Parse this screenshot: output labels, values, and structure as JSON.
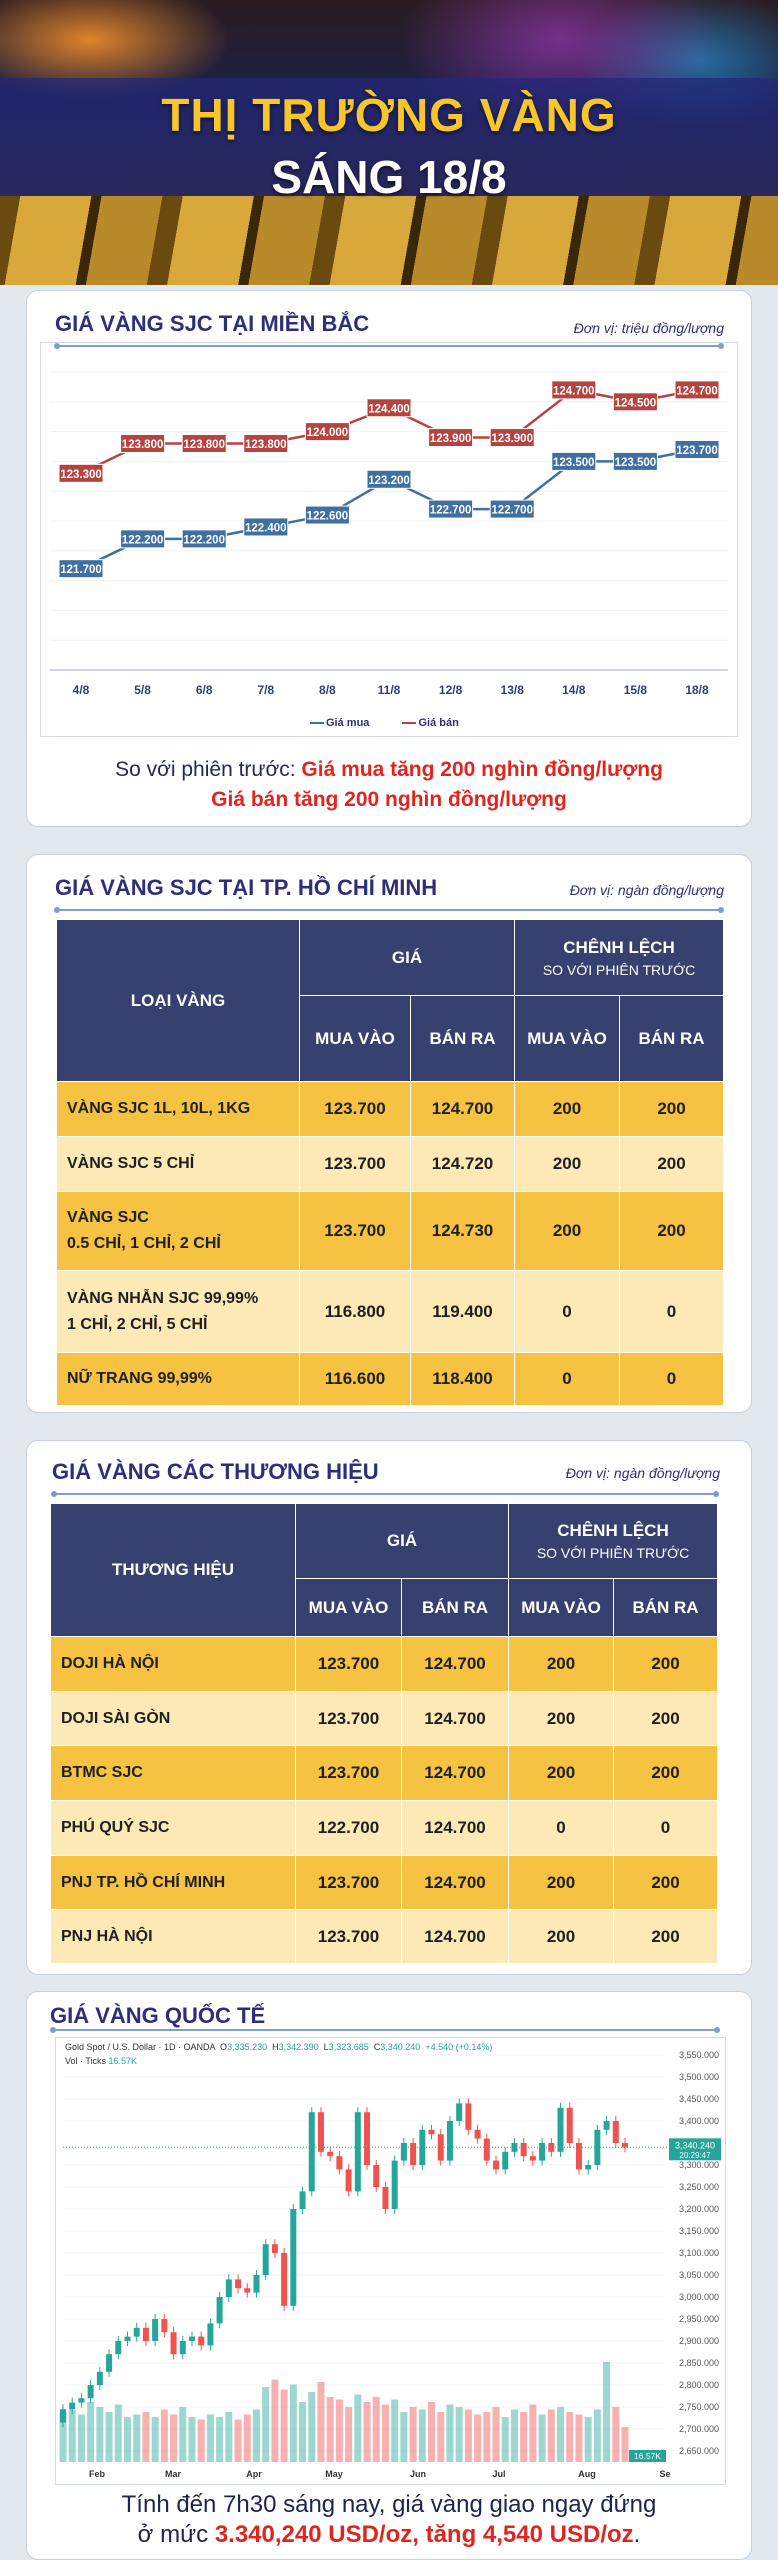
{
  "banner": {
    "title": "THỊ TRƯỜNG VÀNG",
    "subtitle": "SÁNG 18/8"
  },
  "north": {
    "title": "GIÁ VÀNG SJC TẠI MIỀN BẮC",
    "unit": "Đơn vị: triệu đồng/lượng",
    "compare_prefix": "So với phiên trước:",
    "compare_buy": "Giá mua tăng 200 nghìn đồng/lượng",
    "compare_sell": "Giá bán tăng 200 nghìn đồng/lượng"
  },
  "chart_data": [
    {
      "type": "line",
      "categories": [
        "4/8",
        "5/8",
        "6/8",
        "7/8",
        "8/8",
        "11/8",
        "12/8",
        "13/8",
        "14/8",
        "15/8",
        "18/8"
      ],
      "series": [
        {
          "name": "Giá mua",
          "color": "#3f6fa3",
          "values": [
            121.7,
            122.2,
            122.2,
            122.4,
            122.6,
            123.2,
            122.7,
            122.7,
            123.5,
            123.5,
            123.7
          ],
          "labels": [
            "121.700",
            "122.200",
            "122.200",
            "122.400",
            "122.600",
            "123.200",
            "122.700",
            "122.700",
            "123.500",
            "123.500",
            "123.700"
          ]
        },
        {
          "name": "Giá bán",
          "color": "#b5433f",
          "values": [
            123.3,
            123.8,
            123.8,
            123.8,
            124.0,
            124.4,
            123.9,
            123.9,
            124.7,
            124.5,
            124.7
          ],
          "labels": [
            "123.300",
            "123.800",
            "123.800",
            "123.800",
            "124.000",
            "124.400",
            "123.900",
            "123.900",
            "124.700",
            "124.500",
            "124.700"
          ]
        }
      ],
      "ylim": [
        120,
        125
      ],
      "grid": true,
      "legend": "bottom"
    },
    {
      "type": "candlestick",
      "title": "Gold Spot / U.S. Dollar · 1D · OANDA",
      "ohlc_label": {
        "O": "3,335.230",
        "H": "3,342.390",
        "L": "3,323.685",
        "C": "3,340.240",
        "change": "+4.540 (+0.14%)"
      },
      "volume_label": "Vol · Ticks",
      "volume_value": "16.57K",
      "last_price": "3,340.240",
      "countdown": "20:29:47",
      "y_ticks": [
        "3,550.000",
        "3,500.000",
        "3,450.000",
        "3,400.000",
        "3,300.000",
        "3,250.000",
        "3,200.000",
        "3,150.000",
        "3,100.000",
        "3,050.000",
        "3,000.000",
        "2,950.000",
        "2,900.000",
        "2,850.000",
        "2,800.000",
        "2,750.000",
        "2,700.000",
        "2,650.000"
      ],
      "x_ticks": [
        "Feb",
        "Mar",
        "Apr",
        "May",
        "Jun",
        "Jul",
        "Aug",
        "Se"
      ],
      "ylim": [
        2630,
        3570
      ],
      "closes": [
        2745,
        2760,
        2770,
        2800,
        2830,
        2870,
        2900,
        2910,
        2930,
        2900,
        2950,
        2920,
        2870,
        2900,
        2910,
        2890,
        2940,
        3000,
        3040,
        3020,
        3010,
        3050,
        3120,
        3100,
        2980,
        3200,
        3240,
        3420,
        3330,
        3320,
        3290,
        3240,
        3420,
        3300,
        3250,
        3200,
        3310,
        3350,
        3300,
        3380,
        3370,
        3310,
        3400,
        3440,
        3380,
        3360,
        3310,
        3290,
        3330,
        3350,
        3320,
        3310,
        3350,
        3330,
        3430,
        3350,
        3290,
        3300,
        3380,
        3400,
        3350,
        3340
      ],
      "volumes": [
        20,
        21,
        19,
        24,
        22,
        20,
        23,
        18,
        19,
        20,
        18,
        21,
        19,
        22,
        18,
        17,
        19,
        18,
        20,
        17,
        19,
        21,
        30,
        33,
        29,
        31,
        24,
        28,
        32,
        26,
        25,
        22,
        27,
        24,
        26,
        23,
        25,
        20,
        22,
        21,
        24,
        20,
        23,
        22,
        21,
        19,
        20,
        22,
        18,
        21,
        20,
        23,
        19,
        21,
        22,
        20,
        19,
        18,
        21,
        40,
        22,
        14
      ],
      "colors": {
        "up": "#26a69a",
        "down": "#ef5350"
      }
    }
  ],
  "hcm": {
    "title": "GIÁ VÀNG SJC TẠI TP. HỒ CHÍ MINH",
    "unit": "Đơn vị: ngàn đồng/lượng",
    "headers": {
      "type": "LOẠI VÀNG",
      "price": "GIÁ",
      "diff": "CHÊNH LỆCH",
      "diff_sub": "SO VỚI PHIÊN TRƯỚC",
      "buy": "MUA VÀO",
      "sell": "BÁN RA",
      "dbuy": "MUA VÀO",
      "dsell": "BÁN RA"
    },
    "rows": [
      {
        "name": "VÀNG SJC 1L, 10L, 1KG",
        "buy": "123.700",
        "sell": "124.700",
        "dbuy": "200",
        "dsell": "200"
      },
      {
        "name": "VÀNG SJC 5 CHỈ",
        "buy": "123.700",
        "sell": "124.720",
        "dbuy": "200",
        "dsell": "200"
      },
      {
        "name": "VÀNG SJC\n0.5 CHỈ, 1 CHỈ, 2 CHỈ",
        "buy": "123.700",
        "sell": "124.730",
        "dbuy": "200",
        "dsell": "200"
      },
      {
        "name": "VÀNG NHẪN SJC 99,99%\n1 CHỈ, 2 CHỈ, 5 CHỈ",
        "buy": "116.800",
        "sell": "119.400",
        "dbuy": "0",
        "dsell": "0"
      },
      {
        "name": "NỮ TRANG 99,99%",
        "buy": "116.600",
        "sell": "118.400",
        "dbuy": "0",
        "dsell": "0"
      }
    ]
  },
  "brands": {
    "title": "GIÁ VÀNG CÁC THƯƠNG HIỆU",
    "unit": "Đơn vị: ngàn đồng/lượng",
    "headers": {
      "type": "THƯƠNG HIỆU",
      "price": "GIÁ",
      "diff": "CHÊNH LỆCH",
      "diff_sub": "SO VỚI PHIÊN TRƯỚC",
      "buy": "MUA VÀO",
      "sell": "BÁN RA",
      "dbuy": "MUA VÀO",
      "dsell": "BÁN RA"
    },
    "rows": [
      {
        "name": "DOJI HÀ NỘI",
        "buy": "123.700",
        "sell": "124.700",
        "dbuy": "200",
        "dsell": "200"
      },
      {
        "name": "DOJI SÀI GÒN",
        "buy": "123.700",
        "sell": "124.700",
        "dbuy": "200",
        "dsell": "200"
      },
      {
        "name": "BTMC SJC",
        "buy": "123.700",
        "sell": "124.700",
        "dbuy": "200",
        "dsell": "200"
      },
      {
        "name": "PHÚ QUÝ SJC",
        "buy": "122.700",
        "sell": "124.700",
        "dbuy": "0",
        "dsell": "0"
      },
      {
        "name": "PNJ TP. HỒ CHÍ MINH",
        "buy": "123.700",
        "sell": "124.700",
        "dbuy": "200",
        "dsell": "200"
      },
      {
        "name": "PNJ HÀ NỘI",
        "buy": "123.700",
        "sell": "124.700",
        "dbuy": "200",
        "dsell": "200"
      }
    ]
  },
  "intl": {
    "title": "GIÁ VÀNG QUỐC TẾ",
    "line1": "Tính đến 7h30 sáng nay, giá vàng giao ngay đứng",
    "line2_prefix": "ở mức",
    "line2_value": "3.340,240 USD/oz, tăng 4,540 USD/oz",
    "line2_suffix": "."
  }
}
